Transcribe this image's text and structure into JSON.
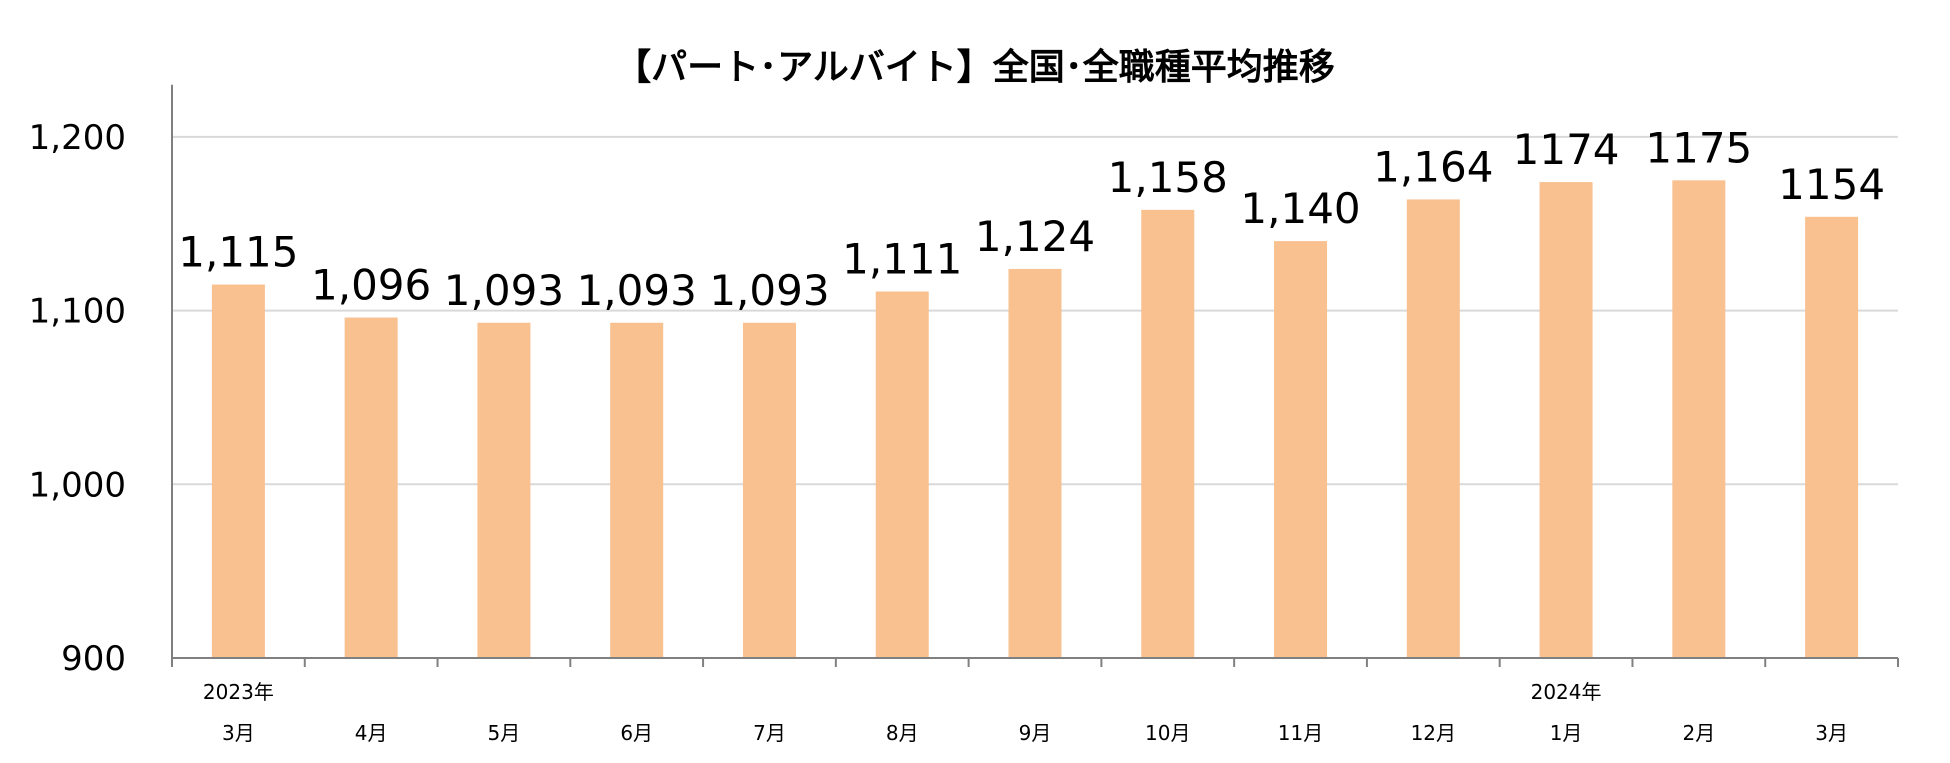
{
  "chart_data": {
    "type": "bar",
    "title": "【パート･アルバイト】全国･全職種平均推移",
    "categories": [
      "3月",
      "4月",
      "5月",
      "6月",
      "7月",
      "8月",
      "9月",
      "10月",
      "11月",
      "12月",
      "1月",
      "2月",
      "3月"
    ],
    "year_labels": [
      "2023年",
      "",
      "",
      "",
      "",
      "",
      "",
      "",
      "",
      "",
      "2024年",
      "",
      ""
    ],
    "values": [
      1115,
      1096,
      1093,
      1093,
      1093,
      1111,
      1124,
      1158,
      1140,
      1164,
      1174,
      1175,
      1154
    ],
    "data_labels": [
      "1,115",
      "1,096",
      "1,093",
      "1,093",
      "1,093",
      "1,111",
      "1,124",
      "1,158",
      "1,140",
      "1,164",
      "1174",
      "1175",
      "1154"
    ],
    "ylim": [
      900,
      1230
    ],
    "yticks": [
      900,
      1000,
      1100,
      1200
    ],
    "ytick_labels": [
      "900",
      "1,000",
      "1,100",
      "1,200"
    ],
    "grid": true,
    "xlabel": "",
    "ylabel": "",
    "colors": {
      "bar": "#F9C090",
      "grid": "#D9D9D9",
      "axis": "#808080"
    }
  }
}
